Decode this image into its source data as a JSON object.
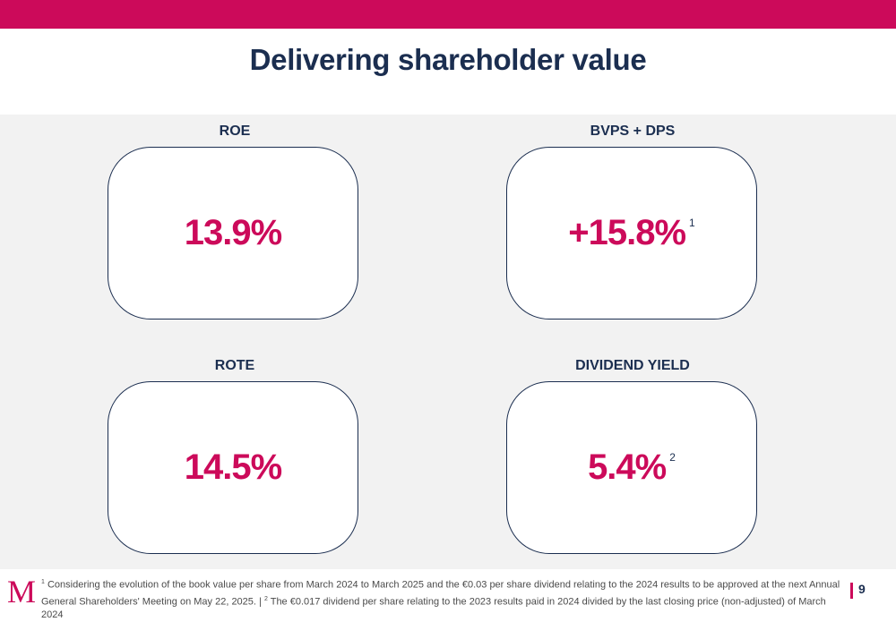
{
  "header": {
    "title": "Delivering shareholder value"
  },
  "metrics": [
    {
      "label": "ROE",
      "value": "13.9%",
      "note": ""
    },
    {
      "label": "BVPS + DPS",
      "value": "+15.8%",
      "note": "1"
    },
    {
      "label": "ROTE",
      "value": "14.5%",
      "note": ""
    },
    {
      "label": "DIVIDEND YIELD",
      "value": "5.4%",
      "note": "2"
    }
  ],
  "footer": {
    "logo": "M",
    "footnote_1_mark": "1",
    "footnote_1": "Considering the evolution of the book value per share from March 2024 to March 2025 and the €0.03 per share dividend relating to the 2024 results to be approved at the next Annual General Shareholders' Meeting on May 22, 2025. |",
    "footnote_2_mark": "2",
    "footnote_2": "The €0.017 dividend per share relating to the 2023 results paid in 2024 divided by the last closing price (non-adjusted) of March 2024",
    "page_number": "9"
  },
  "colors": {
    "accent": "#cc0a5a",
    "navy": "#1b2e50",
    "panel": "#f2f2f2"
  }
}
